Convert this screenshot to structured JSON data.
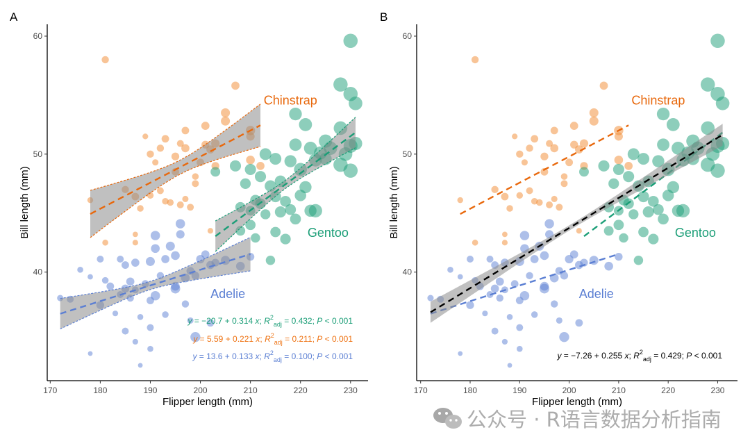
{
  "chart_data": [
    {
      "panel": "A",
      "type": "scatter",
      "xlabel": "Flipper length (mm)",
      "ylabel": "Bill length (mm)",
      "xlim": [
        169.4,
        233.5
      ],
      "ylim": [
        30.8,
        61.0
      ],
      "xticks": [
        "170",
        "180",
        "190",
        "200",
        "210",
        "220",
        "230"
      ],
      "yticks": [
        "40",
        "50",
        "60"
      ],
      "grid": false,
      "fits": "per-species",
      "equations": [
        {
          "species": "Gentoo",
          "y": "y",
          "eq": " = −20.7 + 0.314 ",
          "x": "x",
          "sep": "; ",
          "R": "R",
          "sup": "2",
          "sub": "adj",
          "r2": " = 0.432; ",
          "P": "P",
          "p": " < 0.001"
        },
        {
          "species": "Chinstrap",
          "y": "y",
          "eq": " = 5.59 + 0.221 ",
          "x": "x",
          "sep": "; ",
          "R": "R",
          "sup": "2",
          "sub": "adj",
          "r2": " = 0.211; ",
          "P": "P",
          "p": " < 0.001"
        },
        {
          "species": "Adelie",
          "y": "y",
          "eq": " = 13.6 + 0.133 ",
          "x": "x",
          "sep": "; ",
          "R": "R",
          "sup": "2",
          "sub": "adj",
          "r2": " = 0.100; ",
          "P": "P",
          "p": " < 0.001"
        }
      ]
    },
    {
      "panel": "B",
      "type": "scatter",
      "xlabel": "Flipper length (mm)",
      "ylabel": "Bill length (mm)",
      "xlim": [
        169.2,
        234.0
      ],
      "ylim": [
        30.8,
        61.0
      ],
      "xticks": [
        "170",
        "180",
        "190",
        "200",
        "210",
        "220",
        "230"
      ],
      "yticks": [
        "40",
        "50",
        "60"
      ],
      "grid": false,
      "fits": "overall",
      "overall_fit": {
        "intercept": -7.26,
        "slope": 0.255,
        "range": [
          172,
          231
        ],
        "color": "#000000",
        "ci": {
          "mean_x": 201,
          "hw_mean": 0.22,
          "hw_slope": 0.03
        }
      },
      "equations": [
        {
          "species": "All",
          "y": "y",
          "eq": " = −7.26 + 0.255 ",
          "x": "x",
          "sep": "; ",
          "R": "R",
          "sup": "2",
          "sub": "adj",
          "r2": " = 0.429; ",
          "P": "P",
          "p": " < 0.001"
        }
      ]
    }
  ],
  "species": [
    {
      "name": "Adelie",
      "label": "Adelie",
      "color": "#5b7fd3",
      "line_color": "#5b7fd3",
      "intercept": 13.6,
      "slope": 0.133,
      "range": [
        172,
        210
      ],
      "ci": {
        "mean_x": 190,
        "hw_mean": 0.35,
        "hw_slope": 0.069
      },
      "points": [
        [
          172,
          37.8,
          3.4
        ],
        [
          174,
          37.7,
          3.6
        ],
        [
          176,
          40.2,
          3.3
        ],
        [
          178,
          39.6,
          3.1
        ],
        [
          178,
          33.1,
          2.9
        ],
        [
          180,
          41.1,
          3.6
        ],
        [
          180,
          37.2,
          3.9
        ],
        [
          181,
          39.3,
          3.5
        ],
        [
          182,
          38.8,
          3.8
        ],
        [
          183,
          36.5,
          3.2
        ],
        [
          184,
          41.1,
          3.6
        ],
        [
          184,
          38.1,
          3.6
        ],
        [
          185,
          40.6,
          3.8
        ],
        [
          185,
          38.6,
          4.0
        ],
        [
          186,
          37.8,
          3.7
        ],
        [
          186,
          39.2,
          4.0
        ],
        [
          187,
          38.5,
          3.6
        ],
        [
          187,
          34.1,
          3.2
        ],
        [
          187,
          40.8,
          4.0
        ],
        [
          188,
          32.1,
          2.9
        ],
        [
          188,
          36.2,
          3.3
        ],
        [
          189,
          39.0,
          3.8
        ],
        [
          190,
          40.9,
          4.3
        ],
        [
          190,
          37.6,
          3.8
        ],
        [
          190,
          35.3,
          3.6
        ],
        [
          191,
          42.0,
          4.2
        ],
        [
          191,
          38.0,
          4.4
        ],
        [
          192,
          39.7,
          3.7
        ],
        [
          193,
          41.1,
          4.0
        ],
        [
          193,
          36.4,
          3.5
        ],
        [
          194,
          42.2,
          4.3
        ],
        [
          195,
          38.8,
          4.2
        ],
        [
          195,
          41.4,
          4.2
        ],
        [
          196,
          43.2,
          4.1
        ],
        [
          196,
          44.1,
          4.4
        ],
        [
          197,
          39.5,
          4.2
        ],
        [
          197,
          37.3,
          3.7
        ],
        [
          198,
          40.1,
          3.9
        ],
        [
          198,
          35.9,
          3.4
        ],
        [
          199,
          39.7,
          3.9
        ],
        [
          200,
          41.1,
          4.1
        ],
        [
          201,
          41.5,
          4.0
        ],
        [
          202,
          40.6,
          4.0
        ],
        [
          203,
          40.8,
          3.9
        ],
        [
          205,
          41.0,
          4.3
        ],
        [
          208,
          40.5,
          4.2
        ],
        [
          210,
          41.3,
          3.9
        ],
        [
          202,
          35.7,
          3.8
        ],
        [
          191,
          43.1,
          4.4
        ],
        [
          195,
          38.6,
          4.5
        ],
        [
          185,
          35.0,
          3.6
        ],
        [
          190,
          33.5,
          3.3
        ],
        [
          199,
          34.5,
          4.6
        ]
      ]
    },
    {
      "name": "Chinstrap",
      "label": "Chinstrap",
      "color": "#f28a30",
      "line_color": "#e8680c",
      "intercept": 5.59,
      "slope": 0.221,
      "range": [
        178,
        212
      ],
      "ci": {
        "mean_x": 196,
        "hw_mean": 0.6,
        "hw_slope": 0.106
      },
      "points": [
        [
          178,
          46.1,
          3.25
        ],
        [
          181,
          58.0,
          3.7
        ],
        [
          181,
          42.5,
          3.3
        ],
        [
          185,
          47.0,
          3.7
        ],
        [
          187,
          46.4,
          3.8
        ],
        [
          187,
          42.5,
          3.2
        ],
        [
          188,
          45.4,
          3.5
        ],
        [
          189,
          51.5,
          3.2
        ],
        [
          190,
          46.5,
          3.5
        ],
        [
          190,
          50.0,
          3.7
        ],
        [
          191,
          49.3,
          3.4
        ],
        [
          192,
          46.9,
          3.6
        ],
        [
          192,
          50.5,
          3.7
        ],
        [
          193,
          51.3,
          3.8
        ],
        [
          193,
          46.0,
          3.5
        ],
        [
          194,
          45.9,
          3.5
        ],
        [
          195,
          49.8,
          3.9
        ],
        [
          195,
          48.5,
          3.8
        ],
        [
          196,
          50.9,
          3.6
        ],
        [
          196,
          45.7,
          3.6
        ],
        [
          197,
          52.0,
          3.8
        ],
        [
          197,
          50.5,
          4.0
        ],
        [
          197,
          46.2,
          3.4
        ],
        [
          198,
          45.5,
          3.6
        ],
        [
          199,
          48.1,
          3.5
        ],
        [
          199,
          47.5,
          3.6
        ],
        [
          200,
          49.3,
          3.8
        ],
        [
          201,
          52.4,
          4.0
        ],
        [
          201,
          50.8,
          3.9
        ],
        [
          202,
          50.4,
          4.0
        ],
        [
          203,
          50.9,
          4.1
        ],
        [
          203,
          49.0,
          3.9
        ],
        [
          205,
          53.5,
          4.3
        ],
        [
          205,
          52.8,
          4.3
        ],
        [
          207,
          55.8,
          4.0
        ],
        [
          210,
          51.5,
          4.1
        ],
        [
          210,
          52.0,
          4.4
        ],
        [
          210,
          49.5,
          4.2
        ],
        [
          212,
          49.0,
          4.0
        ],
        [
          202,
          43.5,
          3.2
        ],
        [
          187,
          43.2,
          3.1
        ]
      ]
    },
    {
      "name": "Gentoo",
      "label": "Gentoo",
      "color": "#1b9e77",
      "line_color": "#1b9e77",
      "intercept": -20.7,
      "slope": 0.314,
      "range": [
        203,
        231
      ],
      "ci": {
        "mean_x": 217,
        "hw_mean": 0.35,
        "hw_slope": 0.089
      },
      "points": [
        [
          203,
          48.5,
          4.5
        ],
        [
          207,
          49.0,
          5.0
        ],
        [
          208,
          45.5,
          4.7
        ],
        [
          208,
          43.5,
          4.5
        ],
        [
          209,
          47.5,
          4.8
        ],
        [
          210,
          48.7,
          5.0
        ],
        [
          210,
          45.2,
          4.5
        ],
        [
          210,
          44.0,
          4.7
        ],
        [
          211,
          42.9,
          4.4
        ],
        [
          211,
          46.1,
          4.8
        ],
        [
          212,
          48.1,
          5.0
        ],
        [
          212,
          45.8,
          4.8
        ],
        [
          213,
          44.9,
          4.6
        ],
        [
          213,
          50.0,
          5.2
        ],
        [
          214,
          41.0,
          4.4
        ],
        [
          214,
          47.3,
          5.1
        ],
        [
          215,
          43.4,
          4.7
        ],
        [
          215,
          46.4,
          5.0
        ],
        [
          215,
          49.6,
          5.2
        ],
        [
          216,
          45.1,
          5.0
        ],
        [
          216,
          47.7,
          5.1
        ],
        [
          217,
          46.0,
          4.9
        ],
        [
          217,
          42.8,
          4.8
        ],
        [
          218,
          49.4,
          5.3
        ],
        [
          218,
          45.3,
          4.9
        ],
        [
          219,
          50.8,
          5.4
        ],
        [
          219,
          53.4,
          5.5
        ],
        [
          219,
          44.5,
          4.9
        ],
        [
          220,
          46.5,
          5.1
        ],
        [
          220,
          48.7,
          5.6
        ],
        [
          221,
          52.5,
          5.6
        ],
        [
          221,
          47.2,
          5.3
        ],
        [
          222,
          50.5,
          5.6
        ],
        [
          222,
          45.2,
          5.3
        ],
        [
          223,
          49.5,
          5.6
        ],
        [
          223,
          45.2,
          5.7
        ],
        [
          224,
          50.1,
          5.6
        ],
        [
          225,
          49.6,
          5.4
        ],
        [
          225,
          51.1,
          5.7
        ],
        [
          226,
          50.5,
          5.7
        ],
        [
          228,
          52.2,
          5.8
        ],
        [
          228,
          55.9,
          6.0
        ],
        [
          228,
          49.1,
          6.0
        ],
        [
          229,
          50.0,
          5.8
        ],
        [
          230,
          59.6,
          6.0
        ],
        [
          230,
          55.1,
          6.0
        ],
        [
          230,
          48.6,
          6.0
        ],
        [
          230,
          50.7,
          5.9
        ],
        [
          231,
          54.3,
          5.8
        ],
        [
          231,
          50.9,
          5.7
        ]
      ]
    }
  ],
  "panel_labels": [
    "A",
    "B"
  ],
  "watermark": {
    "text": "公众号 · R语言数据分析指南",
    "icon": "wechat-icon"
  }
}
